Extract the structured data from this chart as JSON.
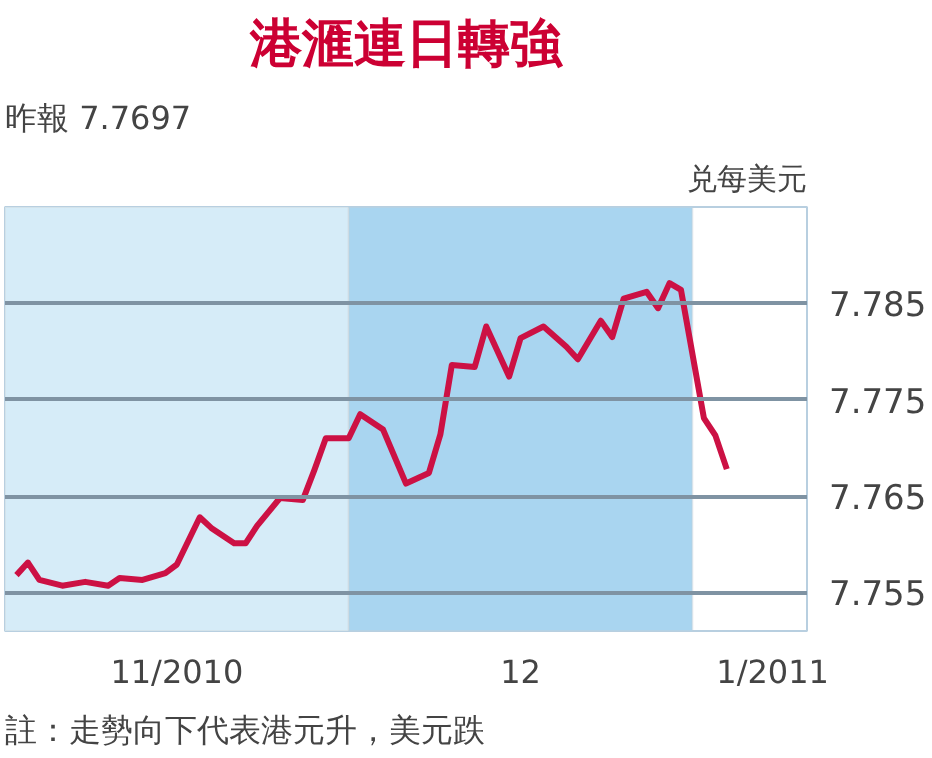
{
  "chart_data": {
    "type": "line",
    "title": "港滙連日轉強",
    "subtitle": "昨報 7.7697",
    "ylabel": "兑每美元",
    "annotations": [
      "註：走勢向下代表港元升，美元跌"
    ],
    "x": [
      "2010-11-02",
      "2010-11-03",
      "2010-11-04",
      "2010-11-06",
      "2010-11-08",
      "2010-11-10",
      "2010-11-11",
      "2010-11-13",
      "2010-11-15",
      "2010-11-16",
      "2010-11-18",
      "2010-11-19",
      "2010-11-21",
      "2010-11-22",
      "2010-11-23",
      "2010-11-25",
      "2010-11-27",
      "2010-11-28",
      "2010-11-29",
      "2010-12-01",
      "2010-12-02",
      "2010-12-04",
      "2010-12-06",
      "2010-12-08",
      "2010-12-09",
      "2010-12-10",
      "2010-12-12",
      "2010-12-13",
      "2010-12-15",
      "2010-12-16",
      "2010-12-18",
      "2010-12-20",
      "2010-12-21",
      "2010-12-23",
      "2010-12-24",
      "2010-12-25",
      "2010-12-27",
      "2010-12-28",
      "2010-12-29",
      "2010-12-30",
      "2011-01-01",
      "2011-01-02",
      "2011-01-03"
    ],
    "series": [
      {
        "color": "#cc1144",
        "values": [
          7.7568,
          7.7581,
          7.7563,
          7.7557,
          7.7561,
          7.7557,
          7.7565,
          7.7563,
          7.757,
          7.7579,
          7.7628,
          7.7617,
          7.7601,
          7.7601,
          7.7619,
          7.7648,
          7.7646,
          7.7677,
          7.771,
          7.771,
          7.7735,
          7.7719,
          7.7663,
          7.7674,
          7.7714,
          7.7786,
          7.7784,
          7.7826,
          7.7774,
          7.7814,
          7.7826,
          7.7805,
          7.7792,
          7.7832,
          7.7815,
          7.7855,
          7.7862,
          7.7845,
          7.7871,
          7.7864,
          7.7731,
          7.7713,
          7.7678
        ]
      }
    ],
    "xlim": [
      "2010-11-01",
      "2011-01-10"
    ],
    "ylim": [
      7.751,
      7.795
    ],
    "xticks": [
      {
        "value": "2010-11-16",
        "label": "11/2010"
      },
      {
        "value": "2010-12-16",
        "label": "12"
      },
      {
        "value": "2011-01-07",
        "label": "1/2011"
      }
    ],
    "yticks": [
      7.755,
      7.765,
      7.775,
      7.785
    ],
    "grid": "y",
    "marker": "none",
    "line_style": "solid",
    "bands": [
      {
        "axis": "x",
        "from": "2010-11-01",
        "to": "2010-12-01",
        "color": "#d6ecf8"
      },
      {
        "axis": "x",
        "from": "2010-12-01",
        "to": "2010-12-31",
        "color": "#a9d5f0"
      }
    ]
  }
}
